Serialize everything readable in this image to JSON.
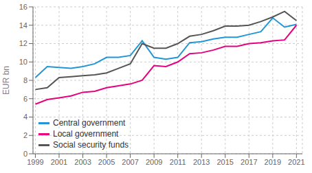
{
  "chart_data": {
    "type": "line",
    "y_label": "EUR bn",
    "x": [
      1999,
      2000,
      2001,
      2002,
      2003,
      2004,
      2005,
      2006,
      2007,
      2008,
      2009,
      2010,
      2011,
      2012,
      2013,
      2014,
      2015,
      2016,
      2017,
      2018,
      2019,
      2020,
      2021
    ],
    "series": [
      {
        "name": "Central government",
        "color": "#2196d6",
        "values": [
          8.3,
          9.5,
          9.4,
          9.3,
          9.5,
          9.8,
          10.5,
          10.5,
          10.7,
          12.3,
          10.5,
          10.3,
          10.5,
          12.1,
          12.2,
          12.5,
          12.7,
          12.7,
          13.0,
          13.3,
          14.8,
          13.8,
          14.1
        ]
      },
      {
        "name": "Local government",
        "color": "#e6007e",
        "values": [
          5.4,
          5.9,
          6.1,
          6.3,
          6.7,
          6.8,
          7.2,
          7.4,
          7.6,
          8.0,
          9.6,
          9.5,
          10.0,
          10.9,
          11.0,
          11.3,
          11.7,
          11.7,
          12.0,
          12.1,
          12.3,
          12.4,
          14.0
        ]
      },
      {
        "name": "Social security funds",
        "color": "#555555",
        "values": [
          7.0,
          7.2,
          8.3,
          8.4,
          8.5,
          8.6,
          8.8,
          9.3,
          9.8,
          12.0,
          11.5,
          11.5,
          12.0,
          12.8,
          13.0,
          13.4,
          13.9,
          13.9,
          14.0,
          14.4,
          14.9,
          15.5,
          14.5
        ]
      }
    ],
    "xlim": [
      1998.8,
      2021.5
    ],
    "xticks": [
      1999,
      2001,
      2003,
      2005,
      2007,
      2009,
      2011,
      2013,
      2015,
      2017,
      2019,
      2021
    ],
    "ylim": [
      0,
      16
    ],
    "yticks": [
      0,
      2,
      4,
      6,
      8,
      10,
      12,
      14,
      16
    ],
    "grid": true,
    "legend": "lower left"
  }
}
